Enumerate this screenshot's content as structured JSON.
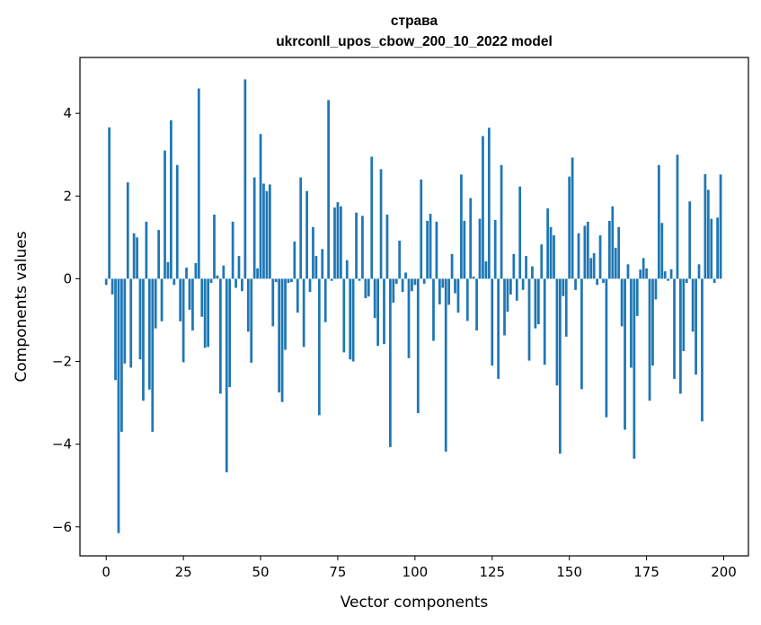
{
  "chart_data": {
    "type": "bar",
    "title": "страва",
    "subtitle": "ukrconll_upos_cbow_200_10_2022 model",
    "xlabel": "Vector components",
    "ylabel": "Components values",
    "xlim": [
      -8.5,
      208
    ],
    "ylim": [
      -6.7,
      5.35
    ],
    "xticks": [
      0,
      25,
      50,
      75,
      100,
      125,
      150,
      175,
      200
    ],
    "yticks": [
      -6,
      -4,
      -2,
      0,
      2,
      4
    ],
    "ytick_labels": [
      "−6",
      "−4",
      "−2",
      "0",
      "2",
      "4"
    ],
    "values": [
      -0.15,
      3.66,
      -0.38,
      -2.45,
      -6.15,
      -3.7,
      -2.05,
      2.33,
      -2.15,
      1.1,
      1.0,
      -1.95,
      -2.95,
      1.38,
      -2.68,
      -3.7,
      -1.2,
      1.18,
      -1.03,
      3.1,
      0.4,
      3.83,
      -0.15,
      2.75,
      -1.03,
      -2.02,
      0.27,
      -0.75,
      -1.25,
      0.38,
      4.6,
      -0.92,
      -1.67,
      -1.65,
      -0.1,
      1.55,
      0.08,
      -2.78,
      0.32,
      -4.68,
      -2.62,
      1.38,
      -0.22,
      0.55,
      -0.3,
      4.82,
      -1.28,
      -2.03,
      2.45,
      0.25,
      3.5,
      2.3,
      2.12,
      2.28,
      -1.15,
      -0.08,
      -2.75,
      -2.98,
      -1.72,
      -0.1,
      -0.08,
      0.9,
      -0.82,
      2.45,
      -1.65,
      2.12,
      -0.32,
      1.25,
      0.55,
      -3.3,
      0.72,
      -1.05,
      4.32,
      -0.05,
      1.72,
      1.85,
      1.75,
      -1.78,
      0.45,
      -1.95,
      -2.0,
      1.6,
      -0.05,
      1.52,
      -0.47,
      -0.43,
      2.95,
      -0.95,
      -1.62,
      2.65,
      -1.58,
      1.55,
      -4.07,
      -0.58,
      -0.12,
      0.92,
      -0.32,
      0.15,
      -1.92,
      -0.3,
      -0.15,
      -3.25,
      2.4,
      -0.12,
      1.4,
      1.57,
      -1.5,
      1.38,
      -0.62,
      -0.22,
      -4.18,
      -0.63,
      0.6,
      -0.35,
      -0.82,
      2.52,
      1.4,
      -1.02,
      1.95,
      0.05,
      -1.25,
      1.45,
      3.45,
      0.42,
      3.65,
      -2.1,
      1.42,
      -2.42,
      2.75,
      -1.37,
      -0.8,
      -0.38,
      0.6,
      -0.53,
      2.23,
      -0.27,
      0.55,
      -1.98,
      0.3,
      -1.2,
      -1.1,
      0.83,
      -2.08,
      1.7,
      1.25,
      1.05,
      -2.58,
      -4.23,
      -0.42,
      -1.4,
      2.47,
      2.93,
      -0.27,
      1.1,
      -2.67,
      1.28,
      1.38,
      0.5,
      0.62,
      -0.15,
      1.05,
      -0.1,
      -3.35,
      1.4,
      1.75,
      0.75,
      1.25,
      -1.15,
      -3.65,
      0.35,
      -2.15,
      -4.35,
      -0.9,
      0.22,
      0.5,
      0.25,
      -2.95,
      -2.1,
      -0.5,
      2.75,
      1.35,
      0.18,
      -0.05,
      0.23,
      -2.42,
      3.0,
      -2.78,
      -1.75,
      -0.1,
      1.87,
      -1.28,
      -2.32,
      0.35,
      -3.45,
      2.53,
      2.15,
      1.45,
      -0.1,
      1.48,
      2.52
    ]
  }
}
